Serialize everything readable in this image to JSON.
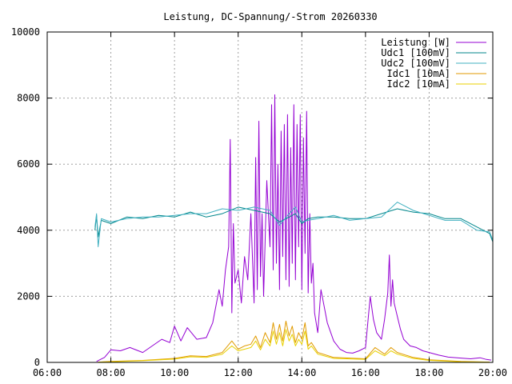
{
  "chart_data": {
    "type": "line",
    "title": "Leistung, DC-Spannung/-Strom 20260330",
    "xlabel": "",
    "ylabel": "",
    "xlim": [
      6,
      20
    ],
    "ylim": [
      0,
      10000
    ],
    "x_ticks": [
      {
        "value": 6,
        "label": "06:00"
      },
      {
        "value": 8,
        "label": "08:00"
      },
      {
        "value": 10,
        "label": "10:00"
      },
      {
        "value": 12,
        "label": "12:00"
      },
      {
        "value": 14,
        "label": "14:00"
      },
      {
        "value": 16,
        "label": "16:00"
      },
      {
        "value": 18,
        "label": "18:00"
      },
      {
        "value": 20,
        "label": "20:00"
      }
    ],
    "y_ticks": [
      {
        "value": 0,
        "label": "0"
      },
      {
        "value": 2000,
        "label": "2000"
      },
      {
        "value": 4000,
        "label": "4000"
      },
      {
        "value": 6000,
        "label": "6000"
      },
      {
        "value": 8000,
        "label": "8000"
      },
      {
        "value": 10000,
        "label": "10000"
      }
    ],
    "grid": true,
    "legend_position": "top-right",
    "series": [
      {
        "name": "Leistung [W]",
        "color": "#9400d3",
        "x": [
          7.55,
          7.8,
          8.0,
          8.3,
          8.6,
          9.0,
          9.3,
          9.6,
          9.85,
          10.0,
          10.2,
          10.4,
          10.7,
          11.0,
          11.2,
          11.4,
          11.5,
          11.6,
          11.7,
          11.75,
          11.8,
          11.85,
          11.9,
          12.0,
          12.1,
          12.2,
          12.3,
          12.4,
          12.5,
          12.55,
          12.6,
          12.65,
          12.7,
          12.75,
          12.8,
          12.9,
          13.0,
          13.05,
          13.1,
          13.15,
          13.2,
          13.25,
          13.3,
          13.35,
          13.4,
          13.45,
          13.5,
          13.55,
          13.6,
          13.65,
          13.7,
          13.75,
          13.8,
          13.85,
          13.9,
          13.95,
          14.0,
          14.05,
          14.1,
          14.15,
          14.2,
          14.25,
          14.3,
          14.35,
          14.4,
          14.5,
          14.6,
          14.8,
          15.0,
          15.2,
          15.4,
          15.6,
          15.8,
          16.0,
          16.15,
          16.25,
          16.35,
          16.5,
          16.6,
          16.7,
          16.75,
          16.8,
          16.85,
          16.9,
          17.0,
          17.1,
          17.2,
          17.4,
          17.6,
          17.8,
          18.0,
          18.3,
          18.6,
          19.0,
          19.3,
          19.6,
          19.8,
          19.95
        ],
        "values": [
          30,
          150,
          380,
          350,
          450,
          300,
          500,
          700,
          600,
          1100,
          650,
          1050,
          700,
          750,
          1200,
          2200,
          1700,
          2800,
          3500,
          6750,
          1500,
          4200,
          2400,
          2800,
          1800,
          3200,
          2500,
          4500,
          1800,
          6200,
          2200,
          7300,
          2600,
          4500,
          2000,
          5500,
          3500,
          7800,
          2800,
          8100,
          3000,
          6000,
          2200,
          7000,
          3200,
          7200,
          2500,
          7500,
          2300,
          6500,
          3000,
          7800,
          2500,
          7200,
          3500,
          7500,
          2200,
          6800,
          3300,
          7600,
          2100,
          4500,
          2400,
          3000,
          1500,
          900,
          2200,
          1200,
          650,
          400,
          300,
          280,
          350,
          450,
          2000,
          1300,
          900,
          700,
          1300,
          2100,
          3250,
          1700,
          2500,
          1800,
          1400,
          1000,
          700,
          500,
          450,
          350,
          300,
          220,
          160,
          130,
          110,
          140,
          90,
          70
        ]
      },
      {
        "name": "Udc1 [100mV]",
        "color": "#00868b",
        "x": [
          7.5,
          7.55,
          7.6,
          7.7,
          8.0,
          8.5,
          9.0,
          9.5,
          10.0,
          10.5,
          11.0,
          11.5,
          12.0,
          12.5,
          13.0,
          13.3,
          13.6,
          13.8,
          14.0,
          14.2,
          14.5,
          15.0,
          15.5,
          16.0,
          16.5,
          17.0,
          17.5,
          18.0,
          18.5,
          19.0,
          19.5,
          19.9,
          20.0
        ],
        "values": [
          4000,
          4450,
          3800,
          4300,
          4200,
          4400,
          4350,
          4450,
          4400,
          4550,
          4400,
          4500,
          4700,
          4600,
          4500,
          4250,
          4400,
          4500,
          4200,
          4350,
          4400,
          4400,
          4350,
          4350,
          4500,
          4650,
          4550,
          4500,
          4350,
          4350,
          4100,
          3900,
          3650
        ]
      },
      {
        "name": "Udc2 [100mV]",
        "color": "#40b0c0",
        "x": [
          7.5,
          7.55,
          7.6,
          7.7,
          8.0,
          8.5,
          9.0,
          9.5,
          10.0,
          10.5,
          11.0,
          11.5,
          12.0,
          12.5,
          13.0,
          13.3,
          13.6,
          13.8,
          14.0,
          14.2,
          14.5,
          15.0,
          15.5,
          16.0,
          16.5,
          17.0,
          17.5,
          18.0,
          18.5,
          19.0,
          19.5,
          19.9,
          20.0
        ],
        "values": [
          4100,
          4500,
          3500,
          4350,
          4250,
          4350,
          4400,
          4400,
          4450,
          4500,
          4500,
          4650,
          4600,
          4700,
          4600,
          4150,
          4500,
          4700,
          4250,
          4300,
          4350,
          4450,
          4300,
          4350,
          4400,
          4850,
          4600,
          4450,
          4300,
          4300,
          4000,
          3950,
          3700
        ]
      },
      {
        "name": "Idc1 [10mA]",
        "color": "#e09a00",
        "x": [
          7.6,
          8.0,
          9.0,
          10.0,
          10.5,
          11.0,
          11.5,
          11.8,
          12.0,
          12.2,
          12.4,
          12.55,
          12.7,
          12.85,
          13.0,
          13.1,
          13.2,
          13.3,
          13.4,
          13.5,
          13.6,
          13.7,
          13.8,
          13.9,
          14.0,
          14.1,
          14.2,
          14.3,
          14.5,
          15.0,
          16.0,
          16.3,
          16.6,
          16.8,
          17.0,
          17.5,
          18.0,
          19.0,
          19.9
        ],
        "values": [
          10,
          30,
          60,
          120,
          200,
          180,
          300,
          650,
          400,
          500,
          550,
          800,
          450,
          900,
          600,
          1200,
          700,
          1150,
          650,
          1250,
          800,
          1100,
          600,
          900,
          700,
          1200,
          500,
          600,
          300,
          150,
          110,
          450,
          250,
          450,
          300,
          150,
          80,
          30,
          10
        ]
      },
      {
        "name": "Idc2 [10mA]",
        "color": "#e8d000",
        "x": [
          7.6,
          8.0,
          9.0,
          10.0,
          10.5,
          11.0,
          11.5,
          11.8,
          12.0,
          12.2,
          12.4,
          12.55,
          12.7,
          12.85,
          13.0,
          13.1,
          13.2,
          13.3,
          13.4,
          13.5,
          13.6,
          13.7,
          13.8,
          13.9,
          14.0,
          14.1,
          14.2,
          14.3,
          14.5,
          15.0,
          16.0,
          16.3,
          16.6,
          16.8,
          17.0,
          17.5,
          18.0,
          19.0,
          19.9
        ],
        "values": [
          10,
          20,
          50,
          100,
          170,
          150,
          250,
          500,
          350,
          400,
          450,
          650,
          380,
          700,
          500,
          950,
          550,
          900,
          500,
          1000,
          650,
          850,
          500,
          700,
          550,
          950,
          400,
          500,
          250,
          120,
          90,
          350,
          200,
          350,
          250,
          120,
          60,
          20,
          10
        ]
      }
    ]
  }
}
